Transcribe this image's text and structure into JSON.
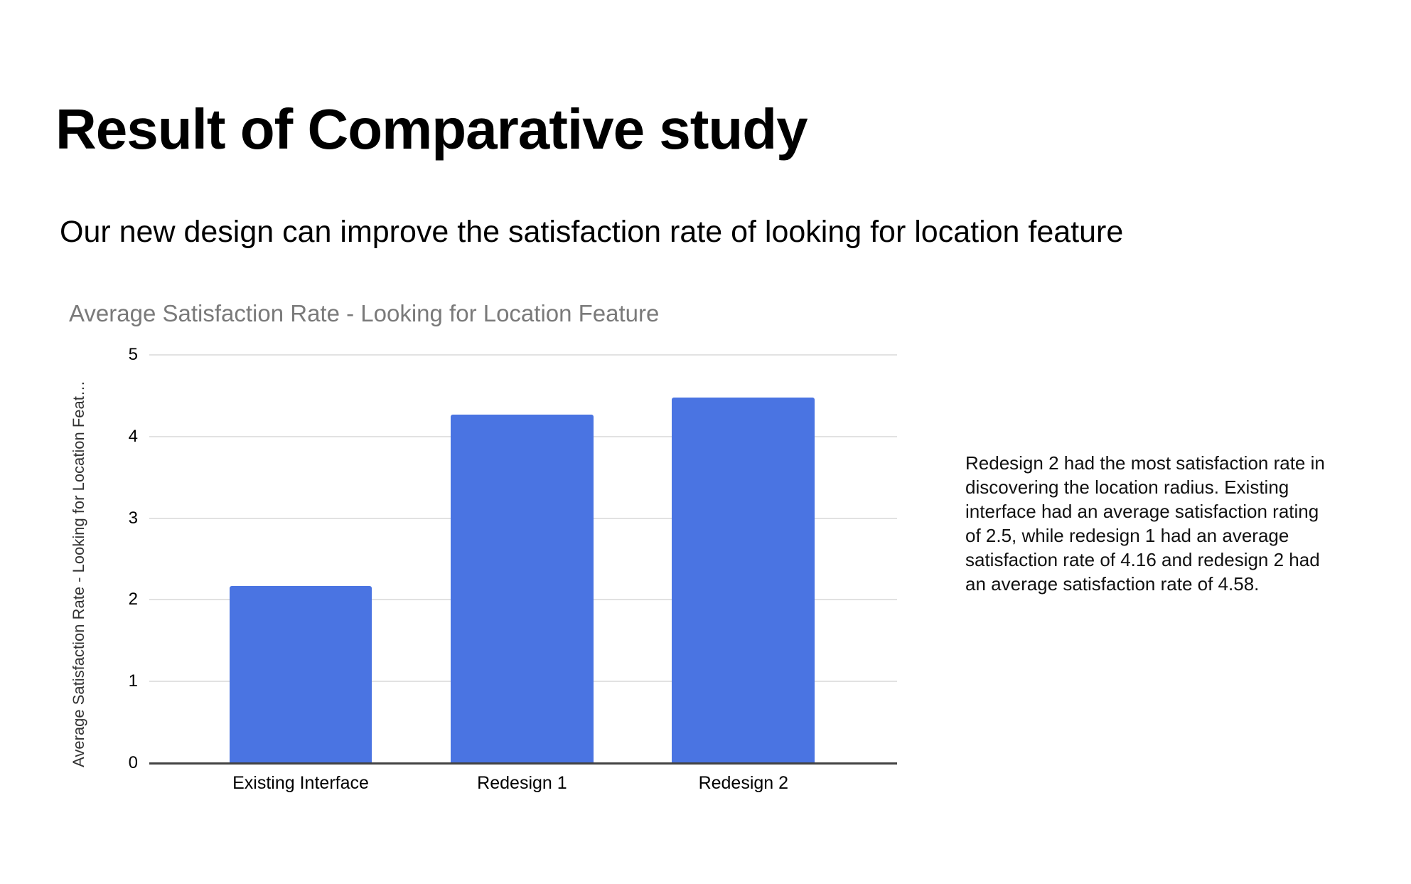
{
  "slide": {
    "title": "Result of Comparative study",
    "subtitle": "Our new design can improve the satisfaction rate of looking for location feature"
  },
  "annotation": {
    "lines": [
      "Redesign 2 had the most satisfaction rate in",
      "discovering the location radius. Existing",
      "interface had an average satisfaction rating",
      "of 2.5, while redesign 1 had an average",
      "satisfaction rate of 4.16 and redesign 2 had",
      "an average satisfaction rate of 4.58."
    ]
  },
  "chart_data": {
    "type": "bar",
    "title": "Average Satisfaction Rate - Looking for Location Feature",
    "ylabel": "Average Satisfaction Rate - Looking for Location Feat…",
    "xlabel": "",
    "categories": [
      "Existing Interface",
      "Redesign 1",
      "Redesign 2"
    ],
    "values": [
      2.17,
      4.27,
      4.48
    ],
    "ylim": [
      0,
      5
    ],
    "yticks": [
      5,
      4,
      3,
      2,
      1,
      0
    ],
    "grid": true,
    "legend": "none",
    "bar_color": "#4a74e2",
    "title_color": "#7a7a7a",
    "gridline_color": "#e2e2e2",
    "axis_line_color": "#424242"
  }
}
